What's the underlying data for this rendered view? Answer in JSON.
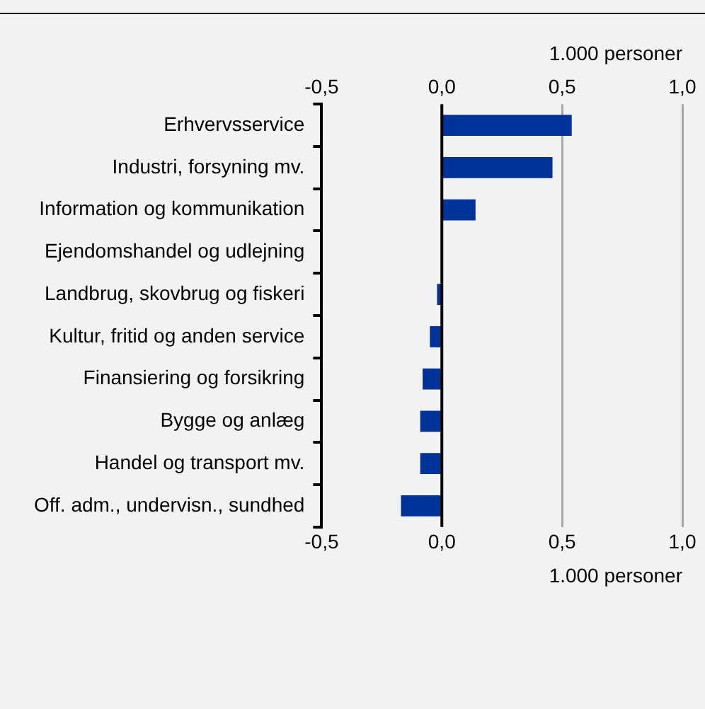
{
  "chart_data": {
    "type": "bar",
    "orientation": "horizontal",
    "categories": [
      "Erhvervsservice",
      "Industri, forsyning mv.",
      "Information og kommunikation",
      "Ejendomshandel og udlejning",
      "Landbrug, skovbrug og fiskeri",
      "Kultur, fritid og anden service",
      "Finansiering og forsikring",
      "Bygge og anlæg",
      "Handel og transport mv.",
      "Off. adm., undervisn., sundhed"
    ],
    "values": [
      0.54,
      0.46,
      0.14,
      0,
      -0.02,
      -0.05,
      -0.08,
      -0.09,
      -0.09,
      -0.17
    ],
    "color": "#003399",
    "xlim": [
      -0.5,
      1.0
    ],
    "xticks": [
      {
        "value": -0.5,
        "label": "-0,5"
      },
      {
        "value": 0,
        "label": "0,0"
      },
      {
        "value": 0.5,
        "label": "0,5"
      },
      {
        "value": 1.0,
        "label": "1,0"
      }
    ],
    "x2lim": [
      -0.5,
      1.0
    ],
    "x2ticks": [
      {
        "value": -0.5,
        "label": "-0,5"
      },
      {
        "value": 0,
        "label": "0,0"
      },
      {
        "value": 0.5,
        "label": "0,5"
      },
      {
        "value": 1.0,
        "label": "1,0"
      }
    ],
    "xlabel": "1.000 personer",
    "x2label": "1.000 personer",
    "ref_lines": [
      {
        "axis": "x",
        "value": 0,
        "color": "#000000"
      }
    ],
    "grid": "x",
    "legend": false
  }
}
